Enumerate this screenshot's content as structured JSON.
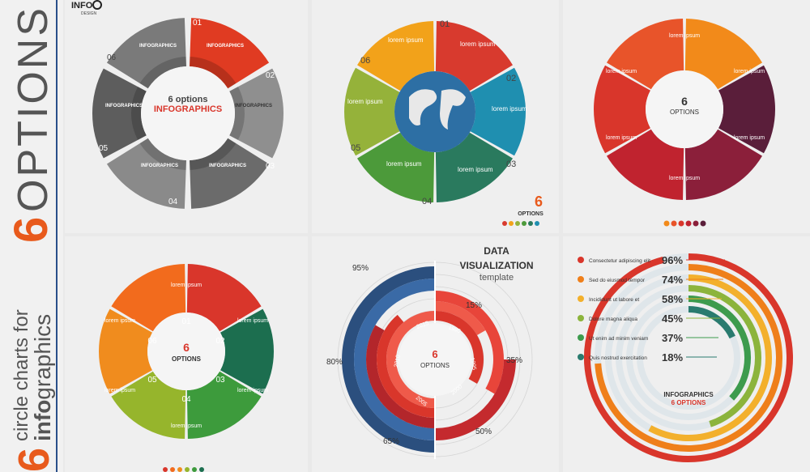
{
  "sidebar": {
    "title_number": "6",
    "title_word": "OPTIONS",
    "subtitle_number": "6",
    "subtitle_text": "circle charts for",
    "subtitle_bold": "info",
    "subtitle_rest": "graphics"
  },
  "logo": {
    "text": "INFO",
    "sub": "DESIGN"
  },
  "p1": {
    "center_top": "6 options",
    "center_bottom": "INFOGRAPHICS",
    "segment_title": "INFOGRAPHICS",
    "numbers": [
      "01",
      "02",
      "03",
      "04",
      "05",
      "06"
    ]
  },
  "p2": {
    "segment_title": "lorem ipsum",
    "numbers": [
      "01",
      "02",
      "03",
      "04",
      "05",
      "06"
    ],
    "badge_num": "6",
    "badge_text": "OPTIONS"
  },
  "p3": {
    "segment_title": "lorem ipsum",
    "center_num": "6",
    "center_text": "OPTIONS"
  },
  "p4": {
    "segment_title": "lorem ipsum",
    "numbers": [
      "01",
      "02",
      "03",
      "04",
      "05",
      "06"
    ],
    "center_num": "6",
    "center_text": "OPTIONS"
  },
  "p5": {
    "title_line1": "DATA",
    "title_line2": "VISUALIZATION",
    "title_line3": "template",
    "center_num": "6",
    "center_text": "OPTIONS",
    "percents": [
      "95%",
      "15%",
      "35%",
      "50%",
      "65%",
      "80%"
    ],
    "years": [
      "2015",
      "1990",
      "1995",
      "2000",
      "2005",
      "2010"
    ]
  },
  "p6": {
    "rows": [
      {
        "label": "Consectetur adipiscing elit",
        "value": "96%",
        "color": "#d9362b"
      },
      {
        "label": "Sed do eiusmod tempor",
        "value": "74%",
        "color": "#ef7f1a"
      },
      {
        "label": "Incididunt ut labore et",
        "value": "58%",
        "color": "#f3b02c"
      },
      {
        "label": "Dolore magna aliqua",
        "value": "45%",
        "color": "#8cb43c"
      },
      {
        "label": "Ut enim ad minim veniam",
        "value": "37%",
        "color": "#3d9b4d"
      },
      {
        "label": "Quis nostrud exercitation",
        "value": "18%",
        "color": "#2a7b6f"
      }
    ],
    "center_title": "INFOGRAPHICS",
    "center_sub": "6 OPTIONS"
  },
  "colors": {
    "red": "#d9362b",
    "orange": "#ef7f1a",
    "accent": "#e04a2a"
  }
}
